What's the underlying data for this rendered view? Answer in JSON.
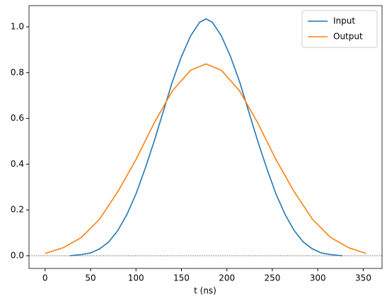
{
  "chart_data": {
    "type": "line",
    "xlabel": "t (ns)",
    "series": [
      {
        "name": "Input",
        "color": "#1f77b4",
        "x": [
          27,
          40,
          50,
          60,
          70,
          80,
          90,
          100,
          110,
          120,
          130,
          140,
          150,
          160,
          170,
          177,
          184,
          194,
          204,
          214,
          224,
          234,
          244,
          254,
          264,
          274,
          284,
          294,
          304,
          314,
          327
        ],
        "values": [
          0.0,
          0.005,
          0.012,
          0.03,
          0.06,
          0.11,
          0.18,
          0.27,
          0.38,
          0.5,
          0.63,
          0.76,
          0.87,
          0.96,
          1.02,
          1.035,
          1.02,
          0.96,
          0.87,
          0.76,
          0.63,
          0.5,
          0.38,
          0.27,
          0.18,
          0.11,
          0.06,
          0.03,
          0.012,
          0.005,
          0.0
        ]
      },
      {
        "name": "Output",
        "color": "#ff7f0e",
        "x": [
          0,
          20,
          40,
          60,
          80,
          100,
          120,
          140,
          160,
          177,
          194,
          214,
          234,
          254,
          274,
          294,
          314,
          334,
          353
        ],
        "values": [
          0.01,
          0.035,
          0.08,
          0.16,
          0.28,
          0.42,
          0.58,
          0.72,
          0.81,
          0.838,
          0.81,
          0.72,
          0.58,
          0.42,
          0.28,
          0.16,
          0.08,
          0.035,
          0.01
        ]
      }
    ],
    "xlim": [
      -17.7,
      370.7
    ],
    "ylim": [
      -0.0556,
      1.0926
    ],
    "xticks": [
      0,
      50,
      100,
      150,
      200,
      250,
      300,
      350
    ],
    "yticks": [
      {
        "value": 0,
        "label": "0.0"
      },
      {
        "value": 0.2,
        "label": "0.2"
      },
      {
        "value": 0.4,
        "label": "0.4"
      },
      {
        "value": 0.6,
        "label": "0.6"
      },
      {
        "value": 0.8,
        "label": "0.8"
      },
      {
        "value": 1,
        "label": "1.0"
      }
    ],
    "legend": "upper right"
  }
}
